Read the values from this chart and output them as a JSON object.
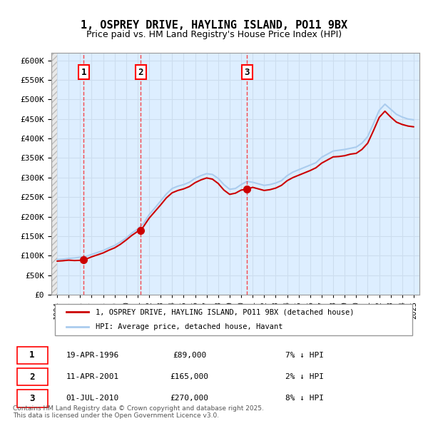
{
  "title": "1, OSPREY DRIVE, HAYLING ISLAND, PO11 9BX",
  "subtitle": "Price paid vs. HM Land Registry's House Price Index (HPI)",
  "hpi_label": "HPI: Average price, detached house, Havant",
  "property_label": "1, OSPREY DRIVE, HAYLING ISLAND, PO11 9BX (detached house)",
  "sales": [
    {
      "date": 1996.3,
      "price": 89000,
      "label": "1",
      "text": "19-APR-1996",
      "amount": "£89,000",
      "note": "7% ↓ HPI"
    },
    {
      "date": 2001.28,
      "price": 165000,
      "label": "2",
      "text": "11-APR-2001",
      "amount": "£165,000",
      "note": "2% ↓ HPI"
    },
    {
      "date": 2010.5,
      "price": 270000,
      "label": "3",
      "text": "01-JUL-2010",
      "amount": "£270,000",
      "note": "8% ↓ HPI"
    }
  ],
  "ylim": [
    0,
    620000
  ],
  "yticks": [
    0,
    50000,
    100000,
    150000,
    200000,
    250000,
    300000,
    350000,
    400000,
    450000,
    500000,
    550000,
    600000
  ],
  "xlim": [
    1993.5,
    2025.5
  ],
  "property_color": "#cc0000",
  "hpi_color": "#aaccee",
  "sale_marker_color": "#cc0000",
  "grid_color": "#ccddee",
  "footer": "Contains HM Land Registry data © Crown copyright and database right 2025.\nThis data is licensed under the Open Government Licence v3.0.",
  "background_color": "#ddeeff",
  "hpi_x": [
    1994.0,
    1994.5,
    1995.0,
    1995.5,
    1996.0,
    1996.5,
    1997.0,
    1997.5,
    1998.0,
    1998.5,
    1999.0,
    1999.5,
    2000.0,
    2000.5,
    2001.0,
    2001.5,
    2002.0,
    2002.5,
    2003.0,
    2003.5,
    2004.0,
    2004.5,
    2005.0,
    2005.5,
    2006.0,
    2006.5,
    2007.0,
    2007.5,
    2008.0,
    2008.5,
    2009.0,
    2009.5,
    2010.0,
    2010.5,
    2011.0,
    2011.5,
    2012.0,
    2012.5,
    2013.0,
    2013.5,
    2014.0,
    2014.5,
    2015.0,
    2015.5,
    2016.0,
    2016.5,
    2017.0,
    2017.5,
    2018.0,
    2018.5,
    2019.0,
    2019.5,
    2020.0,
    2020.5,
    2021.0,
    2021.5,
    2022.0,
    2022.5,
    2023.0,
    2023.5,
    2024.0,
    2024.5,
    2025.0
  ],
  "hpi_y": [
    90000,
    91000,
    93000,
    94000,
    96000,
    98000,
    103000,
    108000,
    113000,
    120000,
    126000,
    135000,
    145000,
    158000,
    168000,
    182000,
    205000,
    222000,
    240000,
    258000,
    272000,
    278000,
    282000,
    288000,
    298000,
    305000,
    310000,
    308000,
    298000,
    282000,
    270000,
    272000,
    282000,
    290000,
    288000,
    284000,
    280000,
    282000,
    286000,
    292000,
    305000,
    314000,
    320000,
    326000,
    332000,
    338000,
    352000,
    360000,
    368000,
    370000,
    372000,
    375000,
    378000,
    388000,
    405000,
    438000,
    472000,
    488000,
    475000,
    462000,
    455000,
    450000,
    448000
  ],
  "prop_x": [
    1994.0,
    1994.5,
    1995.0,
    1995.5,
    1996.0,
    1996.3,
    1996.5,
    1997.0,
    1997.5,
    1998.0,
    1998.5,
    1999.0,
    1999.5,
    2000.0,
    2000.5,
    2001.0,
    2001.28,
    2001.5,
    2002.0,
    2002.5,
    2003.0,
    2003.5,
    2004.0,
    2004.5,
    2005.0,
    2005.5,
    2006.0,
    2006.5,
    2007.0,
    2007.5,
    2008.0,
    2008.5,
    2009.0,
    2009.5,
    2010.0,
    2010.5,
    2011.0,
    2011.5,
    2012.0,
    2012.5,
    2013.0,
    2013.5,
    2014.0,
    2014.5,
    2015.0,
    2015.5,
    2016.0,
    2016.5,
    2017.0,
    2017.5,
    2018.0,
    2018.5,
    2019.0,
    2019.5,
    2020.0,
    2020.5,
    2021.0,
    2021.5,
    2022.0,
    2022.5,
    2023.0,
    2023.5,
    2024.0,
    2024.5,
    2025.0
  ],
  "prop_y": [
    86000,
    87000,
    88500,
    87500,
    88000,
    89000,
    91000,
    97000,
    102000,
    107000,
    114000,
    120000,
    129000,
    140000,
    152000,
    162000,
    165000,
    174000,
    196000,
    213000,
    230000,
    248000,
    261000,
    267000,
    271000,
    277000,
    287000,
    294000,
    299000,
    296000,
    285000,
    268000,
    257000,
    260000,
    268000,
    270000,
    275000,
    271000,
    267000,
    269000,
    273000,
    280000,
    292000,
    300000,
    306000,
    312000,
    318000,
    325000,
    337000,
    345000,
    353000,
    354000,
    356000,
    360000,
    362000,
    372000,
    388000,
    420000,
    454000,
    470000,
    455000,
    442000,
    436000,
    432000,
    430000
  ]
}
